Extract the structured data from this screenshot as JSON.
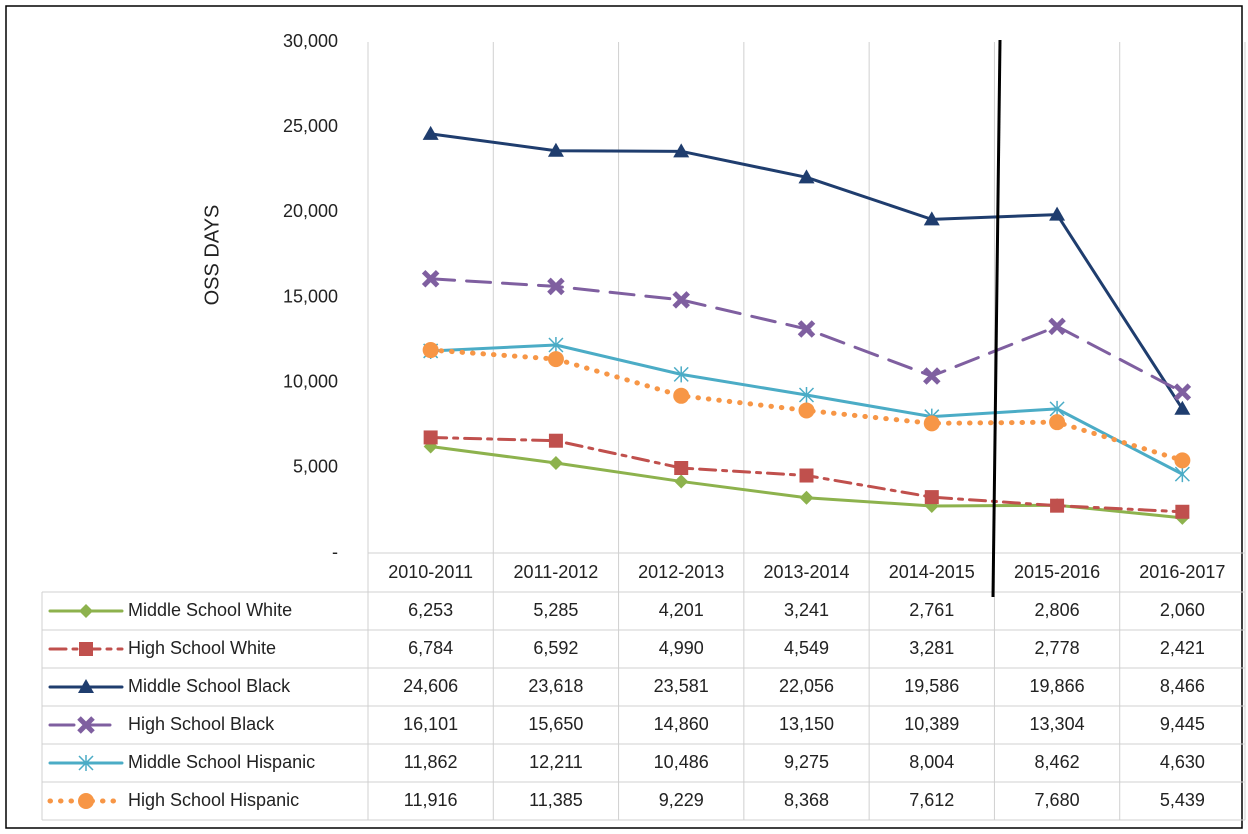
{
  "chart_data": {
    "type": "line",
    "y_label": "OSS DAYS",
    "categories": [
      "2010-2011",
      "2011-2012",
      "2012-2013",
      "2013-2014",
      "2014-2015",
      "2015-2016",
      "2016-2017"
    ],
    "ylim": [
      0,
      30000
    ],
    "yticks": [
      {
        "value": 0,
        "label": "-"
      },
      {
        "value": 5000,
        "label": "5,000"
      },
      {
        "value": 10000,
        "label": "10,000"
      },
      {
        "value": 15000,
        "label": "15,000"
      },
      {
        "value": 20000,
        "label": "20,000"
      },
      {
        "value": 25000,
        "label": "25,000"
      },
      {
        "value": 30000,
        "label": "30,000"
      }
    ],
    "series": [
      {
        "name": "Middle School White",
        "color": "#8db24d",
        "dash": "solid",
        "marker": "diamond",
        "values": [
          6253,
          5285,
          4201,
          3241,
          2761,
          2806,
          2060
        ],
        "value_labels": [
          "6,253",
          "5,285",
          "4,201",
          "3,241",
          "2,761",
          "2,806",
          "2,060"
        ]
      },
      {
        "name": "High School White",
        "color": "#c0504d",
        "dash": "dash-dot",
        "marker": "square",
        "values": [
          6784,
          6592,
          4990,
          4549,
          3281,
          2778,
          2421
        ],
        "value_labels": [
          "6,784",
          "6,592",
          "4,990",
          "4,549",
          "3,281",
          "2,778",
          "2,421"
        ]
      },
      {
        "name": "Middle School Black",
        "color": "#1f3d6e",
        "dash": "solid",
        "marker": "triangle",
        "values": [
          24606,
          23618,
          23581,
          22056,
          19586,
          19866,
          8466
        ],
        "value_labels": [
          "24,606",
          "23,618",
          "23,581",
          "22,056",
          "19,586",
          "19,866",
          "8,466"
        ]
      },
      {
        "name": "High School Black",
        "color": "#7f5fa0",
        "dash": "long-dash",
        "marker": "x",
        "values": [
          16101,
          15650,
          14860,
          13150,
          10389,
          13304,
          9445
        ],
        "value_labels": [
          "16,101",
          "15,650",
          "14,860",
          "13,150",
          "10,389",
          "13,304",
          "9,445"
        ]
      },
      {
        "name": "Middle School Hispanic",
        "color": "#4bacc6",
        "dash": "solid",
        "marker": "asterisk",
        "values": [
          11862,
          12211,
          10486,
          9275,
          8004,
          8462,
          4630
        ],
        "value_labels": [
          "11,862",
          "12,211",
          "10,486",
          "9,275",
          "8,004",
          "8,462",
          "4,630"
        ]
      },
      {
        "name": "High School Hispanic",
        "color": "#f79646",
        "dash": "dot",
        "marker": "circle",
        "values": [
          11916,
          11385,
          9229,
          8368,
          7612,
          7680,
          5439
        ],
        "value_labels": [
          "11,916",
          "11,385",
          "9,229",
          "8,368",
          "7,612",
          "7,680",
          "5,439"
        ]
      }
    ]
  }
}
